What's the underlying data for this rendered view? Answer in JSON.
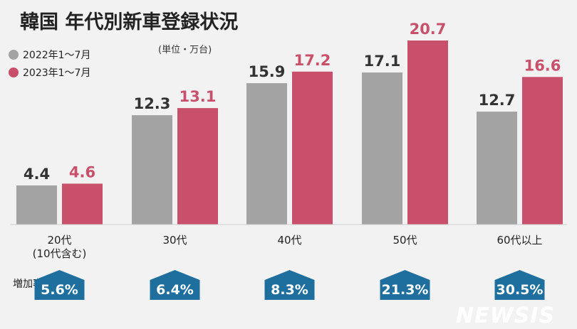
{
  "chart_data": {
    "type": "bar",
    "title": "韓国 年代別新車登録状況",
    "unit": "(単位・万台)",
    "categories": [
      "20代\n(10代含む)",
      "30代",
      "40代",
      "50代",
      "60代以上"
    ],
    "series": [
      {
        "name": "2022年1～7月",
        "color": "#a3a3a3",
        "values": [
          4.4,
          12.3,
          15.9,
          17.1,
          12.7
        ],
        "labels": [
          "4.4",
          "12.3",
          "15.9",
          "17.1",
          "12.7"
        ]
      },
      {
        "name": "2023年1～7月",
        "color": "#c8506a",
        "values": [
          4.6,
          13.1,
          17.2,
          20.7,
          16.6
        ],
        "labels": [
          "4.6",
          "13.1",
          "17.2",
          "20.7",
          "16.6"
        ]
      }
    ],
    "growth_label": "増加率",
    "growth_rates": [
      "5.6%",
      "6.4%",
      "8.3%",
      "21.3%",
      "30.5%"
    ],
    "badge_color": "#1f6f9e",
    "ylim": [
      0,
      20.7
    ]
  },
  "watermark": "NEWSIS"
}
